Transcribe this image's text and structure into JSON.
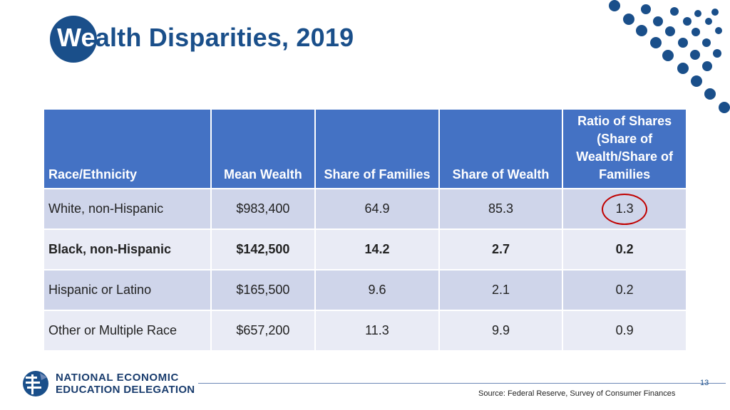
{
  "title": {
    "accent": "We",
    "rest": "alth Disparities, 2019"
  },
  "table": {
    "headers": [
      "Race/Ethnicity",
      "Mean Wealth",
      "Share of Families",
      "Share of Wealth",
      "Ratio of Shares (Share of Wealth/Share of Families"
    ],
    "rows": [
      {
        "race": "White, non-Hispanic",
        "mean_wealth": "$983,400",
        "share_families": "64.9",
        "share_wealth": "85.3",
        "ratio": "1.3"
      },
      {
        "race": "Black, non-Hispanic",
        "mean_wealth": "$142,500",
        "share_families": "14.2",
        "share_wealth": "2.7",
        "ratio": "0.2"
      },
      {
        "race": "Hispanic or Latino",
        "mean_wealth": "$165,500",
        "share_families": "9.6",
        "share_wealth": "2.1",
        "ratio": "0.2"
      },
      {
        "race": "Other or Multiple Race",
        "mean_wealth": "$657,200",
        "share_families": "11.3",
        "share_wealth": "9.9",
        "ratio": "0.9"
      }
    ]
  },
  "logo": {
    "line1": "NATIONAL ECONOMIC",
    "line2": "EDUCATION DELEGATION"
  },
  "page_number": "13",
  "source": "Source: Federal Reserve, Survey of Consumer Finances",
  "colors": {
    "brand": "#1a4f8a",
    "header": "#4472c4",
    "row_odd": "#cfd5ea",
    "row_even": "#e9ebf5",
    "highlight": "#c00000"
  }
}
